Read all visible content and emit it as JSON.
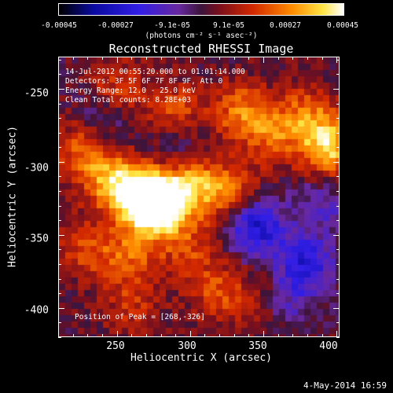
{
  "colorbar": {
    "ticks": [
      "-0.00045",
      "-0.00027",
      "-9.1e-05",
      "9.1e-05",
      "0.00027",
      "0.00045"
    ],
    "units": "(photons cm⁻² s⁻¹ asec⁻²)"
  },
  "title": "Reconstructed RHESSI Image",
  "info": {
    "time": "14-Jul-2012 00:55:20.000 to 01:01:14.000",
    "detectors": "Detectors: 3F 5F 6F 7F 8F 9F, Att 0",
    "energy": "Energy Range: 12.0 - 25.0 keV",
    "clean": "Clean     Total counts: 8.28E+03",
    "peak": "Position of Peak = [268,-326]"
  },
  "datestamp": "4-May-2014 16:59",
  "chart_data": {
    "type": "heatmap",
    "title": "Reconstructed RHESSI Image",
    "xlabel": "Heliocentric X (arcsec)",
    "ylabel": "Heliocentric Y (arcsec)",
    "xlim": [
      210,
      402
    ],
    "ylim": [
      -420,
      -228
    ],
    "xticks": [
      "250",
      "300",
      "350",
      "400"
    ],
    "yticks": [
      "-250",
      "-300",
      "-350",
      "-400"
    ],
    "colorbar_range": [
      -0.00045,
      0.00045
    ],
    "colormap": "black-blue-purple-red-orange-yellow-white",
    "peak": [
      268,
      -326
    ],
    "total_counts": 8280,
    "blobs": [
      {
        "x": 268,
        "y": -326,
        "value": 0.00045
      },
      {
        "x": 280,
        "y": -330,
        "value": 0.0004
      },
      {
        "x": 245,
        "y": -312,
        "value": 0.00028
      },
      {
        "x": 300,
        "y": -315,
        "value": 0.00024
      },
      {
        "x": 325,
        "y": -320,
        "value": 0.00022
      },
      {
        "x": 225,
        "y": -290,
        "value": 0.00018
      },
      {
        "x": 250,
        "y": -250,
        "value": 0.00016
      },
      {
        "x": 290,
        "y": -265,
        "value": 0.00017
      },
      {
        "x": 335,
        "y": -265,
        "value": 0.00022
      },
      {
        "x": 355,
        "y": -282,
        "value": 0.00018
      },
      {
        "x": 395,
        "y": -290,
        "value": 0.00034
      },
      {
        "x": 380,
        "y": -268,
        "value": 0.0002
      },
      {
        "x": 230,
        "y": -360,
        "value": 0.00016
      },
      {
        "x": 260,
        "y": -365,
        "value": 0.00018
      },
      {
        "x": 300,
        "y": -360,
        "value": 0.00015
      },
      {
        "x": 320,
        "y": -390,
        "value": 0.00017
      },
      {
        "x": 260,
        "y": -398,
        "value": 0.00012
      },
      {
        "x": 355,
        "y": -395,
        "value": 0.00015
      },
      {
        "x": 345,
        "y": -345,
        "value": -0.0003
      },
      {
        "x": 380,
        "y": -370,
        "value": -0.00025
      },
      {
        "x": 365,
        "y": -395,
        "value": -0.0002
      },
      {
        "x": 290,
        "y": -290,
        "value": -0.0001
      },
      {
        "x": 240,
        "y": -270,
        "value": -0.00012
      },
      {
        "x": 390,
        "y": -330,
        "value": -0.00014
      }
    ]
  }
}
